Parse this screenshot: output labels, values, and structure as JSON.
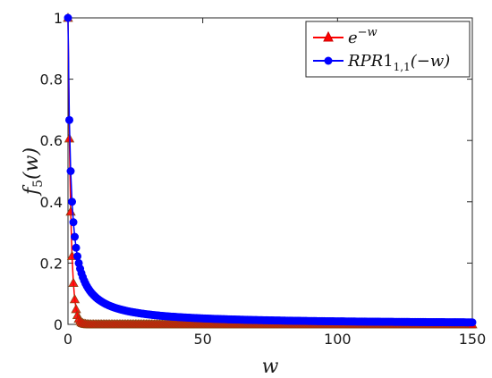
{
  "chart_data": {
    "type": "line",
    "title": "",
    "xlabel": "w",
    "ylabel": "f5(w)",
    "ylabel_main": "f",
    "ylabel_sub": "5",
    "ylabel_arg": "(w)",
    "xlim": [
      0,
      150
    ],
    "ylim": [
      0,
      1
    ],
    "xticks": [
      0,
      50,
      100,
      150
    ],
    "xtick_labels": [
      "0",
      "50",
      "100",
      "150"
    ],
    "yticks": [
      0,
      0.2,
      0.4,
      0.6,
      0.8,
      1
    ],
    "ytick_labels": [
      "0",
      "0.2",
      "0.4",
      "0.6",
      "0.8",
      "1"
    ],
    "grid": false,
    "legend_position": "top-right",
    "series": [
      {
        "name": "e^{-w}",
        "legend_base": "e",
        "legend_sup": "−w",
        "marker": "triangle",
        "color": "#ff0000",
        "function": "exp(-w)",
        "x_range": [
          0,
          150
        ],
        "x_step": 0.5
      },
      {
        "name": "RPR1_{1,1}(-w)",
        "legend_base": "RPR",
        "legend_digit": "1",
        "legend_sub": "1,1",
        "legend_arg": "(−w)",
        "marker": "circle",
        "color": "#0000ff",
        "function": "1/(1+w)",
        "x_range": [
          0,
          150
        ],
        "x_step": 0.5
      }
    ]
  }
}
